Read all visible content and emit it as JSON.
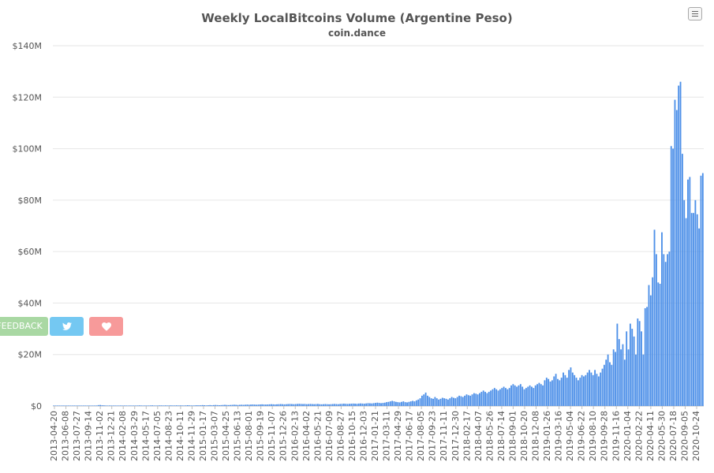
{
  "chart_data": {
    "type": "bar",
    "title": "Weekly LocalBitcoins Volume (Argentine Peso)",
    "subtitle": "coin.dance",
    "ylabel": "",
    "xlabel": "",
    "ylim": [
      0,
      140000000
    ],
    "y_ticks": [
      "$0",
      "$20M",
      "$40M",
      "$60M",
      "$80M",
      "$100M",
      "$120M",
      "$140M"
    ],
    "y_tick_values": [
      0,
      20000000,
      40000000,
      60000000,
      80000000,
      100000000,
      120000000,
      140000000
    ],
    "x_tick_labels": [
      "2013-04-20",
      "2013-06-08",
      "2013-07-27",
      "2013-09-14",
      "2013-11-02",
      "2013-12-21",
      "2014-02-08",
      "2014-03-29",
      "2014-05-17",
      "2014-07-05",
      "2014-08-23",
      "2014-10-11",
      "2014-11-29",
      "2015-01-17",
      "2015-03-07",
      "2015-04-25",
      "2015-06-13",
      "2015-08-01",
      "2015-09-19",
      "2015-11-07",
      "2015-12-26",
      "2016-02-13",
      "2016-04-02",
      "2016-05-21",
      "2016-07-09",
      "2016-08-27",
      "2016-10-15",
      "2016-12-03",
      "2017-01-21",
      "2017-03-11",
      "2017-04-29",
      "2017-06-17",
      "2017-08-05",
      "2017-09-23",
      "2017-11-11",
      "2017-12-30",
      "2018-02-17",
      "2018-04-07",
      "2018-05-26",
      "2018-07-14",
      "2018-09-01",
      "2018-10-20",
      "2018-12-08",
      "2019-01-26",
      "2019-03-16",
      "2019-05-04",
      "2019-06-22",
      "2019-08-10",
      "2019-09-28",
      "2019-11-16",
      "2020-01-04",
      "2020-02-22",
      "2020-04-11",
      "2020-05-30",
      "2020-07-18",
      "2020-09-05",
      "2020-10-24"
    ],
    "series": [
      {
        "color": "#4c8fe8",
        "values": [
          0.02,
          0.02,
          0.02,
          0.02,
          0.02,
          0.02,
          0.02,
          0.02,
          0.02,
          0.02,
          0.02,
          0.02,
          0.02,
          0.02,
          0.02,
          0.02,
          0.02,
          0.02,
          0.02,
          0.02,
          0.05,
          0.08,
          0.12,
          0.2,
          0.35,
          0.4,
          0.3,
          0.25,
          0.2,
          0.18,
          0.2,
          0.15,
          0.2,
          0.18,
          0.15,
          0.18,
          0.2,
          0.15,
          0.2,
          0.18,
          0.15,
          0.2,
          0.18,
          0.2,
          0.15,
          0.2,
          0.25,
          0.2,
          0.15,
          0.2,
          0.18,
          0.2,
          0.22,
          0.25,
          0.2,
          0.18,
          0.2,
          0.25,
          0.22,
          0.2,
          0.25,
          0.2,
          0.22,
          0.25,
          0.2,
          0.22,
          0.25,
          0.2,
          0.25,
          0.22,
          0.2,
          0.25,
          0.3,
          0.25,
          0.22,
          0.2,
          0.25,
          0.3,
          0.25,
          0.3,
          0.35,
          0.3,
          0.25,
          0.3,
          0.35,
          0.3,
          0.35,
          0.4,
          0.35,
          0.3,
          0.35,
          0.4,
          0.45,
          0.4,
          0.35,
          0.4,
          0.45,
          0.5,
          0.45,
          0.4,
          0.45,
          0.5,
          0.45,
          0.5,
          0.55,
          0.5,
          0.55,
          0.6,
          0.55,
          0.5,
          0.55,
          0.6,
          0.65,
          0.6,
          0.55,
          0.6,
          0.65,
          0.7,
          0.65,
          0.6,
          0.65,
          0.7,
          0.75,
          0.7,
          0.65,
          0.7,
          0.75,
          0.8,
          0.75,
          0.7,
          0.75,
          0.8,
          0.85,
          0.8,
          0.75,
          0.8,
          0.7,
          0.75,
          0.8,
          0.75,
          0.7,
          0.75,
          0.8,
          0.7,
          0.65,
          0.7,
          0.75,
          0.7,
          0.65,
          0.7,
          0.75,
          0.8,
          0.75,
          0.7,
          0.8,
          0.85,
          0.9,
          0.85,
          0.8,
          0.85,
          0.9,
          0.95,
          0.9,
          0.85,
          0.95,
          1.0,
          0.95,
          0.9,
          1.0,
          1.1,
          1.05,
          1.0,
          1.1,
          1.2,
          1.3,
          1.2,
          1.1,
          1.2,
          1.3,
          1.5,
          1.6,
          1.8,
          2.0,
          1.8,
          1.6,
          1.5,
          1.4,
          1.6,
          1.8,
          1.5,
          1.4,
          1.6,
          1.8,
          2.0,
          1.8,
          2.2,
          2.5,
          3.0,
          4.0,
          4.5,
          5.2,
          4.0,
          3.5,
          3.0,
          2.8,
          3.5,
          3.0,
          2.5,
          2.8,
          3.2,
          3.0,
          2.8,
          2.5,
          3.0,
          3.5,
          3.2,
          3.0,
          3.5,
          4.0,
          3.8,
          3.5,
          4.0,
          4.5,
          4.2,
          4.0,
          4.5,
          5.0,
          4.8,
          4.5,
          5.0,
          5.5,
          6.0,
          5.5,
          5.0,
          5.5,
          6.0,
          6.5,
          7.0,
          6.5,
          6.0,
          6.5,
          7.0,
          7.5,
          7.0,
          6.5,
          7.0,
          8.0,
          8.5,
          8.0,
          7.5,
          8.0,
          8.5,
          7.5,
          6.5,
          7.0,
          7.5,
          8.0,
          7.5,
          7.0,
          8.0,
          8.5,
          9.0,
          8.5,
          8.0,
          10.0,
          11.0,
          10.5,
          9.5,
          10.0,
          11.5,
          12.5,
          10.5,
          10.0,
          11.0,
          13.0,
          12.0,
          11.0,
          14.0,
          15.0,
          13.0,
          12.0,
          11.0,
          10.0,
          11.0,
          12.0,
          11.5,
          12.0,
          13.0,
          14.0,
          13.0,
          12.0,
          14.0,
          12.5,
          11.5,
          13.0,
          14.5,
          16.0,
          18.0,
          20.0,
          17.0,
          16.0,
          22.0,
          21.0,
          32.0,
          26.0,
          22.0,
          24.0,
          18.0,
          29.0,
          22.0,
          32.0,
          30.0,
          27.0,
          20.0,
          34.0,
          33.0,
          29.0,
          20.0,
          38.0,
          38.5,
          47.0,
          43.0,
          50.0,
          68.5,
          59.0,
          48.0,
          47.5,
          67.5,
          59.0,
          56.0,
          59.0,
          60.0,
          101.0,
          100.0,
          119.0,
          115.0,
          124.5,
          126.0,
          98.0,
          80.0,
          73.0,
          88.0,
          89.0,
          75.0,
          75.0,
          80.0,
          74.5,
          69.0,
          89.5,
          90.5
        ]
      }
    ],
    "units": "millions of ARS"
  },
  "buttons": {
    "feedback_label": "FEEDBACK"
  },
  "icons": {
    "menu": "hamburger-menu-icon",
    "twitter": "twitter-icon",
    "donate": "heart-icon"
  }
}
